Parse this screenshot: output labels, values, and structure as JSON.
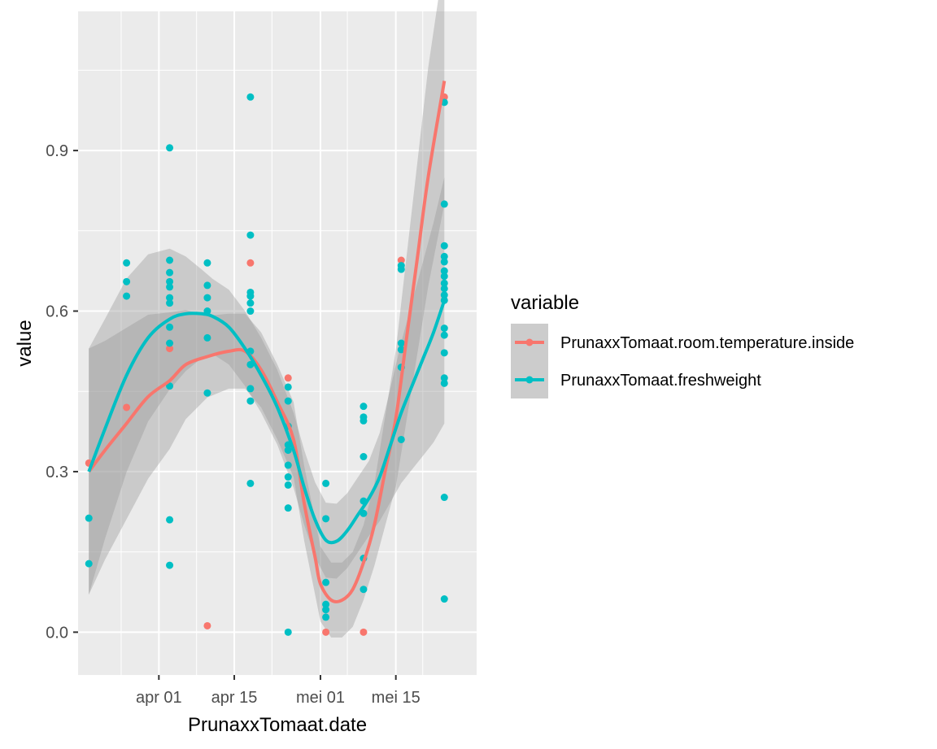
{
  "chart_data": {
    "type": "scatter",
    "xlabel": "PrunaxxTomaat.date",
    "ylabel": "value",
    "x_ticks": [
      "apr 01",
      "apr 15",
      "mei 01",
      "mei 15"
    ],
    "x_tick_values": [
      "04-01",
      "04-15",
      "05-01",
      "05-15"
    ],
    "y_ticks": [
      "0.0",
      "0.3",
      "0.6",
      "0.9"
    ],
    "y_tick_values": [
      0.0,
      0.3,
      0.6,
      0.9
    ],
    "xlim": [
      "03-17",
      "05-30"
    ],
    "ylim": [
      -0.08,
      1.16
    ],
    "grid": true,
    "legend": {
      "title": "variable",
      "position": "right"
    },
    "series": [
      {
        "name": "PrunaxxTomaat.room.temperature.inside",
        "color": "#F8766D",
        "points": [
          [
            "03-19",
            0.316
          ],
          [
            "03-26",
            0.42
          ],
          [
            "04-03",
            0.53
          ],
          [
            "04-10",
            0.012
          ],
          [
            "04-18",
            0.69
          ],
          [
            "04-25",
            0.475
          ],
          [
            "05-02",
            0.0
          ],
          [
            "05-09",
            0.0
          ],
          [
            "05-16",
            0.695
          ],
          [
            "05-24",
            1.0
          ]
        ],
        "smooth": [
          [
            "03-19",
            0.3
          ],
          [
            "03-22",
            0.34
          ],
          [
            "03-26",
            0.39
          ],
          [
            "03-30",
            0.44
          ],
          [
            "04-03",
            0.47
          ],
          [
            "04-06",
            0.5
          ],
          [
            "04-10",
            0.515
          ],
          [
            "04-14",
            0.525
          ],
          [
            "04-17",
            0.525
          ],
          [
            "04-20",
            0.49
          ],
          [
            "04-23",
            0.43
          ],
          [
            "04-26",
            0.36
          ],
          [
            "04-28",
            0.24
          ],
          [
            "04-30",
            0.14
          ],
          [
            "05-01",
            0.09
          ],
          [
            "05-03",
            0.06
          ],
          [
            "05-05",
            0.06
          ],
          [
            "05-07",
            0.08
          ],
          [
            "05-09",
            0.13
          ],
          [
            "05-11",
            0.2
          ],
          [
            "05-13",
            0.3
          ],
          [
            "05-15",
            0.4
          ],
          [
            "05-17",
            0.55
          ],
          [
            "05-19",
            0.7
          ],
          [
            "05-21",
            0.85
          ],
          [
            "05-24",
            1.03
          ]
        ]
      },
      {
        "name": "PrunaxxTomaat.freshweight",
        "color": "#00BFC4",
        "points": [
          [
            "03-19",
            0.213
          ],
          [
            "03-19",
            0.128
          ],
          [
            "03-26",
            0.69
          ],
          [
            "03-26",
            0.655
          ],
          [
            "03-26",
            0.628
          ],
          [
            "04-03",
            0.905
          ],
          [
            "04-03",
            0.695
          ],
          [
            "04-03",
            0.672
          ],
          [
            "04-03",
            0.655
          ],
          [
            "04-03",
            0.645
          ],
          [
            "04-03",
            0.625
          ],
          [
            "04-03",
            0.615
          ],
          [
            "04-03",
            0.57
          ],
          [
            "04-03",
            0.54
          ],
          [
            "04-03",
            0.46
          ],
          [
            "04-03",
            0.21
          ],
          [
            "04-03",
            0.125
          ],
          [
            "04-10",
            0.69
          ],
          [
            "04-10",
            0.648
          ],
          [
            "04-10",
            0.625
          ],
          [
            "04-10",
            0.6
          ],
          [
            "04-10",
            0.55
          ],
          [
            "04-10",
            0.447
          ],
          [
            "04-18",
            1.0
          ],
          [
            "04-18",
            0.742
          ],
          [
            "04-18",
            0.635
          ],
          [
            "04-18",
            0.628
          ],
          [
            "04-18",
            0.615
          ],
          [
            "04-18",
            0.6
          ],
          [
            "04-18",
            0.525
          ],
          [
            "04-18",
            0.5
          ],
          [
            "04-18",
            0.455
          ],
          [
            "04-18",
            0.432
          ],
          [
            "04-18",
            0.278
          ],
          [
            "04-25",
            0.458
          ],
          [
            "04-25",
            0.432
          ],
          [
            "04-25",
            0.385
          ],
          [
            "04-25",
            0.35
          ],
          [
            "04-25",
            0.34
          ],
          [
            "04-25",
            0.312
          ],
          [
            "04-25",
            0.29
          ],
          [
            "04-25",
            0.275
          ],
          [
            "04-25",
            0.232
          ],
          [
            "04-25",
            0.0
          ],
          [
            "05-02",
            0.278
          ],
          [
            "05-02",
            0.212
          ],
          [
            "05-02",
            0.093
          ],
          [
            "05-02",
            0.052
          ],
          [
            "05-02",
            0.042
          ],
          [
            "05-02",
            0.028
          ],
          [
            "05-09",
            0.422
          ],
          [
            "05-09",
            0.402
          ],
          [
            "05-09",
            0.395
          ],
          [
            "05-09",
            0.328
          ],
          [
            "05-09",
            0.245
          ],
          [
            "05-09",
            0.222
          ],
          [
            "05-09",
            0.138
          ],
          [
            "05-09",
            0.08
          ],
          [
            "05-16",
            0.685
          ],
          [
            "05-16",
            0.678
          ],
          [
            "05-16",
            0.54
          ],
          [
            "05-16",
            0.528
          ],
          [
            "05-16",
            0.495
          ],
          [
            "05-16",
            0.36
          ],
          [
            "05-24",
            0.99
          ],
          [
            "05-24",
            0.8
          ],
          [
            "05-24",
            0.722
          ],
          [
            "05-24",
            0.702
          ],
          [
            "05-24",
            0.692
          ],
          [
            "05-24",
            0.675
          ],
          [
            "05-24",
            0.665
          ],
          [
            "05-24",
            0.652
          ],
          [
            "05-24",
            0.642
          ],
          [
            "05-24",
            0.63
          ],
          [
            "05-24",
            0.62
          ],
          [
            "05-24",
            0.568
          ],
          [
            "05-24",
            0.555
          ],
          [
            "05-24",
            0.522
          ],
          [
            "05-24",
            0.475
          ],
          [
            "05-24",
            0.465
          ],
          [
            "05-24",
            0.252
          ],
          [
            "05-24",
            0.062
          ]
        ],
        "smooth": [
          [
            "03-19",
            0.3
          ],
          [
            "03-22",
            0.38
          ],
          [
            "03-26",
            0.48
          ],
          [
            "03-30",
            0.55
          ],
          [
            "04-03",
            0.585
          ],
          [
            "04-06",
            0.595
          ],
          [
            "04-09",
            0.595
          ],
          [
            "04-11",
            0.59
          ],
          [
            "04-14",
            0.57
          ],
          [
            "04-17",
            0.53
          ],
          [
            "04-20",
            0.48
          ],
          [
            "04-23",
            0.42
          ],
          [
            "04-26",
            0.34
          ],
          [
            "04-28",
            0.27
          ],
          [
            "04-30",
            0.21
          ],
          [
            "05-02",
            0.172
          ],
          [
            "05-04",
            0.17
          ],
          [
            "05-06",
            0.19
          ],
          [
            "05-08",
            0.22
          ],
          [
            "05-10",
            0.25
          ],
          [
            "05-12",
            0.29
          ],
          [
            "05-14",
            0.35
          ],
          [
            "05-16",
            0.41
          ],
          [
            "05-18",
            0.46
          ],
          [
            "05-20",
            0.51
          ],
          [
            "05-22",
            0.56
          ],
          [
            "05-24",
            0.62
          ]
        ]
      }
    ]
  }
}
